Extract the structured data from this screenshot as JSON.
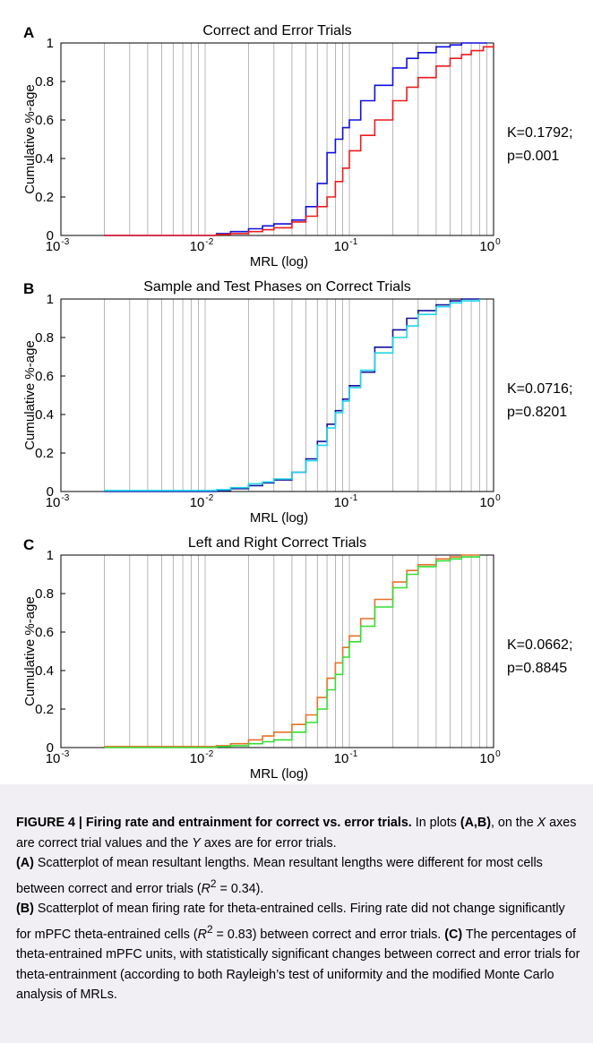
{
  "figure": {
    "panels": [
      {
        "letter": "A",
        "stat_k": "K=0.1792;",
        "stat_p": "p=0.001"
      },
      {
        "letter": "B",
        "stat_k": "K=0.0716;",
        "stat_p": "p=0.8201"
      },
      {
        "letter": "C",
        "stat_k": "K=0.0662;",
        "stat_p": "p=0.8845"
      }
    ]
  },
  "chart_data": [
    {
      "type": "line",
      "title": "Correct and Error Trials",
      "xlabel": "MRL (log)",
      "ylabel": "Cumulative %-age",
      "x_scale": "log",
      "xlim": [
        0.001,
        1
      ],
      "ylim": [
        0,
        1
      ],
      "x_ticks": [
        "10^-3",
        "10^-2",
        "10^-1",
        "10^0"
      ],
      "y_ticks": [
        "0",
        "0.2",
        "0.4",
        "0.6",
        "0.8",
        "1"
      ],
      "grid": "vertical minor log gridlines",
      "series": [
        {
          "color": "#1010e0",
          "points": [
            [
              0.002,
              0
            ],
            [
              0.008,
              0
            ],
            [
              0.012,
              0.01
            ],
            [
              0.015,
              0.02
            ],
            [
              0.02,
              0.035
            ],
            [
              0.025,
              0.05
            ],
            [
              0.03,
              0.06
            ],
            [
              0.04,
              0.08
            ],
            [
              0.05,
              0.15
            ],
            [
              0.06,
              0.27
            ],
            [
              0.07,
              0.43
            ],
            [
              0.08,
              0.5
            ],
            [
              0.09,
              0.56
            ],
            [
              0.1,
              0.6
            ],
            [
              0.12,
              0.7
            ],
            [
              0.15,
              0.78
            ],
            [
              0.2,
              0.87
            ],
            [
              0.25,
              0.92
            ],
            [
              0.3,
              0.95
            ],
            [
              0.4,
              0.98
            ],
            [
              0.5,
              0.99
            ],
            [
              0.6,
              1
            ],
            [
              0.9,
              1
            ]
          ]
        },
        {
          "color": "#ee1c1c",
          "points": [
            [
              0.002,
              0
            ],
            [
              0.008,
              0
            ],
            [
              0.012,
              0.005
            ],
            [
              0.015,
              0.01
            ],
            [
              0.02,
              0.02
            ],
            [
              0.025,
              0.03
            ],
            [
              0.03,
              0.04
            ],
            [
              0.04,
              0.07
            ],
            [
              0.05,
              0.1
            ],
            [
              0.06,
              0.15
            ],
            [
              0.07,
              0.2
            ],
            [
              0.08,
              0.28
            ],
            [
              0.09,
              0.35
            ],
            [
              0.1,
              0.44
            ],
            [
              0.12,
              0.52
            ],
            [
              0.15,
              0.6
            ],
            [
              0.2,
              0.7
            ],
            [
              0.25,
              0.77
            ],
            [
              0.3,
              0.82
            ],
            [
              0.4,
              0.88
            ],
            [
              0.5,
              0.92
            ],
            [
              0.6,
              0.94
            ],
            [
              0.7,
              0.96
            ],
            [
              0.85,
              0.98
            ],
            [
              1,
              0.99
            ]
          ]
        }
      ]
    },
    {
      "type": "line",
      "title": "Sample and Test Phases on Correct Trials",
      "xlabel": "MRL (log)",
      "ylabel": "Cumulative %-age",
      "x_scale": "log",
      "xlim": [
        0.001,
        1
      ],
      "ylim": [
        0,
        1
      ],
      "x_ticks": [
        "10^-3",
        "10^-2",
        "10^-1",
        "10^0"
      ],
      "y_ticks": [
        "0",
        "0.2",
        "0.4",
        "0.6",
        "0.8",
        "1"
      ],
      "grid": "vertical minor log gridlines",
      "series": [
        {
          "color": "#12129a",
          "points": [
            [
              0.002,
              0
            ],
            [
              0.008,
              0
            ],
            [
              0.012,
              0.005
            ],
            [
              0.015,
              0.015
            ],
            [
              0.02,
              0.03
            ],
            [
              0.025,
              0.045
            ],
            [
              0.03,
              0.06
            ],
            [
              0.04,
              0.1
            ],
            [
              0.05,
              0.17
            ],
            [
              0.06,
              0.26
            ],
            [
              0.07,
              0.35
            ],
            [
              0.08,
              0.42
            ],
            [
              0.09,
              0.48
            ],
            [
              0.1,
              0.55
            ],
            [
              0.12,
              0.62
            ],
            [
              0.15,
              0.75
            ],
            [
              0.2,
              0.84
            ],
            [
              0.25,
              0.9
            ],
            [
              0.3,
              0.94
            ],
            [
              0.4,
              0.97
            ],
            [
              0.5,
              0.99
            ],
            [
              0.6,
              1
            ],
            [
              0.8,
              1
            ]
          ]
        },
        {
          "color": "#22d4ee",
          "points": [
            [
              0.002,
              0.005
            ],
            [
              0.008,
              0.005
            ],
            [
              0.012,
              0.01
            ],
            [
              0.015,
              0.02
            ],
            [
              0.02,
              0.04
            ],
            [
              0.025,
              0.05
            ],
            [
              0.03,
              0.065
            ],
            [
              0.04,
              0.1
            ],
            [
              0.05,
              0.16
            ],
            [
              0.06,
              0.24
            ],
            [
              0.07,
              0.33
            ],
            [
              0.08,
              0.41
            ],
            [
              0.09,
              0.47
            ],
            [
              0.1,
              0.54
            ],
            [
              0.12,
              0.63
            ],
            [
              0.15,
              0.72
            ],
            [
              0.2,
              0.8
            ],
            [
              0.25,
              0.86
            ],
            [
              0.3,
              0.92
            ],
            [
              0.4,
              0.96
            ],
            [
              0.5,
              0.98
            ],
            [
              0.6,
              0.99
            ],
            [
              0.8,
              1
            ]
          ]
        }
      ]
    },
    {
      "type": "line",
      "title": "Left and Right Correct Trials",
      "xlabel": "MRL (log)",
      "ylabel": "Cumulative %-age",
      "x_scale": "log",
      "xlim": [
        0.001,
        1
      ],
      "ylim": [
        0,
        1
      ],
      "x_ticks": [
        "10^-3",
        "10^-2",
        "10^-1",
        "10^0"
      ],
      "y_ticks": [
        "0",
        "0.2",
        "0.4",
        "0.6",
        "0.8",
        "1"
      ],
      "grid": "vertical minor log gridlines",
      "series": [
        {
          "color": "#e8702a",
          "points": [
            [
              0.002,
              0.005
            ],
            [
              0.008,
              0.005
            ],
            [
              0.012,
              0.01
            ],
            [
              0.015,
              0.02
            ],
            [
              0.02,
              0.04
            ],
            [
              0.025,
              0.06
            ],
            [
              0.03,
              0.08
            ],
            [
              0.04,
              0.12
            ],
            [
              0.05,
              0.17
            ],
            [
              0.06,
              0.26
            ],
            [
              0.07,
              0.36
            ],
            [
              0.08,
              0.44
            ],
            [
              0.09,
              0.52
            ],
            [
              0.1,
              0.58
            ],
            [
              0.12,
              0.67
            ],
            [
              0.15,
              0.77
            ],
            [
              0.2,
              0.86
            ],
            [
              0.25,
              0.92
            ],
            [
              0.3,
              0.95
            ],
            [
              0.4,
              0.98
            ],
            [
              0.5,
              0.99
            ],
            [
              0.6,
              1
            ],
            [
              0.8,
              1
            ]
          ]
        },
        {
          "color": "#33dd33",
          "points": [
            [
              0.002,
              0
            ],
            [
              0.008,
              0
            ],
            [
              0.012,
              0.005
            ],
            [
              0.015,
              0.01
            ],
            [
              0.02,
              0.02
            ],
            [
              0.025,
              0.03
            ],
            [
              0.03,
              0.04
            ],
            [
              0.04,
              0.08
            ],
            [
              0.05,
              0.13
            ],
            [
              0.06,
              0.2
            ],
            [
              0.07,
              0.3
            ],
            [
              0.08,
              0.38
            ],
            [
              0.09,
              0.47
            ],
            [
              0.1,
              0.55
            ],
            [
              0.12,
              0.63
            ],
            [
              0.15,
              0.73
            ],
            [
              0.2,
              0.83
            ],
            [
              0.25,
              0.9
            ],
            [
              0.3,
              0.94
            ],
            [
              0.4,
              0.97
            ],
            [
              0.5,
              0.98
            ],
            [
              0.6,
              0.99
            ],
            [
              0.8,
              1
            ]
          ]
        }
      ]
    }
  ],
  "caption": {
    "heading": "FIGURE 4 | Firing rate and entrainment for correct vs. error trials.",
    "t1": " In plots ",
    "ab": "(A,B)",
    "t2": ", on the ",
    "xv": "X",
    "t3": " axes are correct trial values and the ",
    "yv": "Y",
    "t4": " axes are for error trials.",
    "a_label": "(A)",
    "a_text": " Scatterplot of mean resultant lengths. Mean resultant lengths were different for most cells between correct and error trials (",
    "a_r": "R",
    "a_sup": "2",
    "a_val": " = 0.34).",
    "b_label": "(B)",
    "b_text": " Scatterplot of mean firing rate for theta-entrained cells. Firing rate did not change significantly for mPFC theta-entrained cells (",
    "b_r": "R",
    "b_sup": "2",
    "b_val": " = 0.83) between correct and error trials. ",
    "c_label": "(C)",
    "c_text": " The percentages of theta-entrained mPFC units, with statistically significant changes between correct and error trials for theta-entrainment (according to both Rayleigh’s test of uniformity and the modified Monte Carlo analysis of MRLs."
  }
}
